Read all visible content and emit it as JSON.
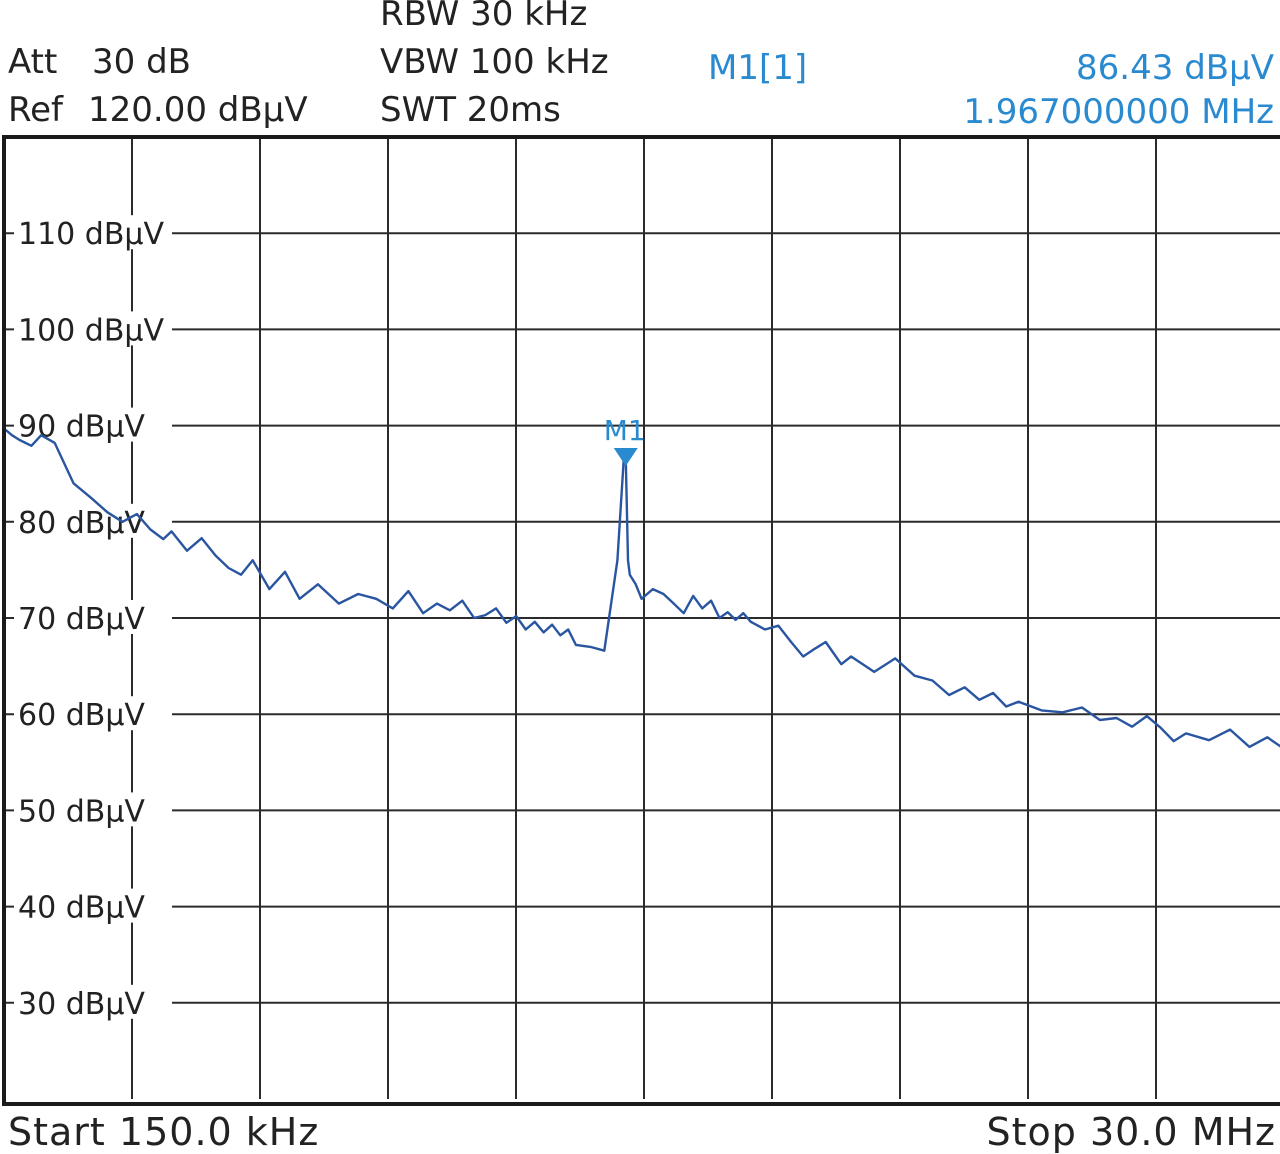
{
  "settings": {
    "att": "Att",
    "att_value": "30 dB",
    "ref": "Ref",
    "ref_value": "120.00 dBµV",
    "rbw": "RBW 30 kHz",
    "vbw": "VBW 100 kHz",
    "swt": "SWT 20ms"
  },
  "marker_readout": {
    "name": "M1[1]",
    "level": "86.43 dBµV",
    "frequency": "1.967000000 MHz"
  },
  "footer": {
    "start": "Start 150.0 kHz",
    "stop": "Stop 30.0 MHz"
  },
  "colors": {
    "trace": "#2a55a0",
    "marker": "#2a8ad0",
    "grid": "#2b2b2b",
    "text": "#222222"
  },
  "chart_data": {
    "type": "line",
    "x_scale": "log",
    "x_unit": "MHz",
    "xlim": [
      0.15,
      30.0
    ],
    "ylim": [
      20,
      120
    ],
    "grid": true,
    "y_ticks": [
      {
        "value": 110,
        "label": "110 dBµV"
      },
      {
        "value": 100,
        "label": "100 dBµV"
      },
      {
        "value": 90,
        "label": "90 dBµV"
      },
      {
        "value": 80,
        "label": "80 dBµV"
      },
      {
        "value": 70,
        "label": "70 dBµV"
      },
      {
        "value": 60,
        "label": "60 dBµV"
      },
      {
        "value": 50,
        "label": "50 dBµV"
      },
      {
        "value": 40,
        "label": "40 dBµV"
      },
      {
        "value": 30,
        "label": "30 dBµV"
      }
    ],
    "series": [
      {
        "x": [
          0.15,
          0.155,
          0.16,
          0.168,
          0.175,
          0.185,
          0.2,
          0.215,
          0.23,
          0.245,
          0.26,
          0.275,
          0.29,
          0.3,
          0.32,
          0.34,
          0.36,
          0.38,
          0.4,
          0.42,
          0.45,
          0.48,
          0.51,
          0.55,
          0.6,
          0.65,
          0.7,
          0.75,
          0.8,
          0.85,
          0.9,
          0.95,
          1.0,
          1.05,
          1.1,
          1.15,
          1.2,
          1.25,
          1.3,
          1.35,
          1.4,
          1.45,
          1.5,
          1.55,
          1.6,
          1.7,
          1.8,
          1.9,
          1.95,
          1.967,
          1.985,
          2.0,
          2.05,
          2.1,
          2.2,
          2.3,
          2.4,
          2.5,
          2.6,
          2.7,
          2.8,
          2.9,
          3.0,
          3.1,
          3.2,
          3.3,
          3.5,
          3.7,
          3.9,
          4.1,
          4.3,
          4.5,
          4.8,
          5.0,
          5.5,
          6.0,
          6.5,
          7.0,
          7.5,
          8.0,
          8.5,
          9.0,
          9.5,
          10.0,
          11.0,
          12.0,
          13.0,
          14.0,
          15.0,
          16.0,
          17.0,
          18.0,
          19.0,
          20.0,
          22.0,
          24.0,
          26.0,
          28.0,
          30.0
        ],
        "y": [
          89.7,
          89.0,
          88.5,
          87.9,
          89.0,
          88.2,
          84.0,
          82.5,
          81.0,
          80.0,
          80.8,
          79.2,
          78.2,
          79.0,
          77.0,
          78.3,
          76.5,
          75.2,
          74.5,
          76.0,
          73.0,
          74.8,
          72.0,
          73.5,
          71.5,
          72.5,
          72.0,
          71.0,
          72.8,
          70.5,
          71.5,
          70.8,
          71.8,
          70.0,
          70.3,
          71.0,
          69.5,
          70.2,
          68.8,
          69.6,
          68.5,
          69.3,
          68.2,
          68.8,
          67.2,
          67.0,
          66.6,
          76.0,
          86.43,
          86.43,
          76.0,
          74.5,
          73.5,
          72.0,
          73.0,
          72.5,
          71.5,
          70.5,
          72.3,
          71.0,
          71.8,
          70.0,
          70.6,
          69.8,
          70.5,
          69.6,
          68.8,
          69.2,
          67.5,
          66.0,
          66.8,
          67.5,
          65.2,
          66.0,
          64.4,
          65.8,
          64.0,
          63.5,
          62.0,
          62.8,
          61.5,
          62.2,
          60.8,
          61.3,
          60.4,
          60.2,
          60.7,
          59.4,
          59.6,
          58.7,
          59.8,
          58.6,
          57.2,
          58.0,
          57.3,
          58.4,
          56.6,
          57.6,
          56.4
        ]
      }
    ],
    "markers": [
      {
        "name": "M1",
        "x": 1.967,
        "y": 86.43
      }
    ]
  }
}
